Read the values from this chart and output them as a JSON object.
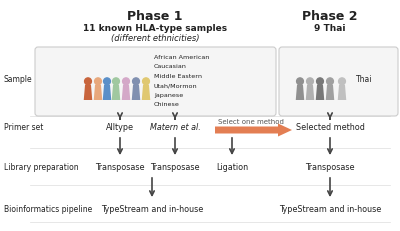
{
  "bg_color": "#ffffff",
  "phase1_title": "Phase 1",
  "phase2_title": "Phase 2",
  "phase1_subtitle1": "11 known HLA-type samples",
  "phase1_subtitle2": "(different ethnicities)",
  "phase2_subtitle": "9 Thai",
  "row_labels": [
    "Sample",
    "Primer set",
    "Library preparation",
    "Bioinformatics pipeline"
  ],
  "phase1_col1_labels": [
    "Alltype",
    "Transposase",
    "TypeStream and in-house"
  ],
  "phase1_col2_labels": [
    "Matern et al.",
    "Transposase",
    "TypeStream and in-house"
  ],
  "phase1_col3_label": "Ligation",
  "phase2_col_labels": [
    "Selected method",
    "Transposase",
    "TypeStream and in-house"
  ],
  "select_text": "Select one method",
  "ethnicity_list": [
    "African American",
    "Caucasian",
    "Middle Eastern",
    "Utah/Mormon",
    "Japanese",
    "Chinese"
  ],
  "thai_label": "Thai",
  "arrow_color": "#e07040",
  "text_color": "#222222",
  "select_text_color": "#555555",
  "box_color": "#f5f5f5",
  "box_edge_color": "#cccccc",
  "crowd1_colors": [
    "#c8643c",
    "#e8a87c",
    "#5a8fc8",
    "#a0c8a0",
    "#d4a8c8",
    "#8090b0",
    "#e0c870"
  ],
  "crowd2_colors": [
    "#909090",
    "#b0b0b0",
    "#787878",
    "#a0a0a0",
    "#c0c0c0"
  ]
}
